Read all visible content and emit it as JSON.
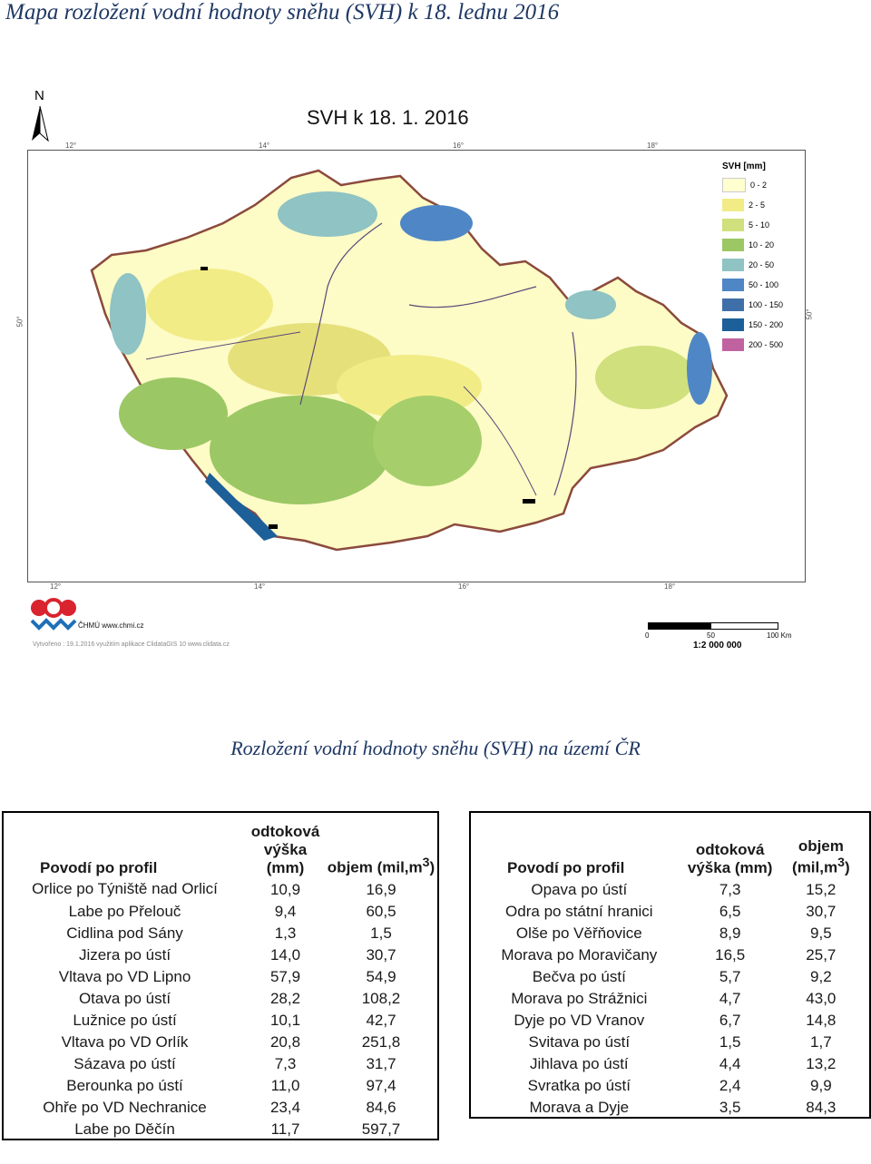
{
  "document_title": "Mapa rozložení vodní hodnoty sněhu (SVH) k 18. lednu 2016",
  "map": {
    "title": "SVH k 18. 1. 2016",
    "north_label": "N",
    "lon_ticks": [
      "12°",
      "14°",
      "16°",
      "18°"
    ],
    "lat_tick": "50°",
    "legend_title": "SVH [mm]",
    "legend": [
      {
        "label": "0 - 2",
        "color": "#ffffd0"
      },
      {
        "label": "2 - 5",
        "color": "#f2ec87"
      },
      {
        "label": "5 - 10",
        "color": "#cfe07d"
      },
      {
        "label": "10 - 20",
        "color": "#9cc765"
      },
      {
        "label": "20 - 50",
        "color": "#8fc3c4"
      },
      {
        "label": "50 - 100",
        "color": "#4f86c6"
      },
      {
        "label": "100 - 150",
        "color": "#3f6fa8"
      },
      {
        "label": "150 - 200",
        "color": "#1d5f98"
      },
      {
        "label": "200 - 500",
        "color": "#c062a0"
      }
    ],
    "logo_text": "ČHMÚ www.chmi.cz",
    "credit": "Vytvořeno : 19.1.2016 využitím aplikace ClidataGIS 10 www.clidata.cz",
    "scale_labels": [
      "0",
      "50",
      "100 Km"
    ],
    "scale_ratio": "1:2 000 000"
  },
  "section_title": "Rozložení vodní hodnoty sněhu (SVH) na území ČR",
  "table": {
    "header": {
      "profile": "Povodí po profil",
      "runoff": "odtoková výška (mm)",
      "volume_pre": "objem (mil,m",
      "volume_sup": "3",
      "volume_post": ")"
    },
    "left_rows": [
      [
        "Orlice po Týniště nad Orlicí",
        "10,9",
        "16,9"
      ],
      [
        "Labe po Přelouč",
        "9,4",
        "60,5"
      ],
      [
        "Cidlina pod Sány",
        "1,3",
        "1,5"
      ],
      [
        "Jizera po ústí",
        "14,0",
        "30,7"
      ],
      [
        "Vltava po VD Lipno",
        "57,9",
        "54,9"
      ],
      [
        "Otava po ústí",
        "28,2",
        "108,2"
      ],
      [
        "Lužnice po ústí",
        "10,1",
        "42,7"
      ],
      [
        "Vltava po VD Orlík",
        "20,8",
        "251,8"
      ],
      [
        "Sázava po ústí",
        "7,3",
        "31,7"
      ],
      [
        "Berounka po ústí",
        "11,0",
        "97,4"
      ],
      [
        "Ohře po VD Nechranice",
        "23,4",
        "84,6"
      ],
      [
        "Labe po Děčín",
        "11,7",
        "597,7"
      ]
    ],
    "right_rows": [
      [
        "Opava po ústí",
        "7,3",
        "15,2"
      ],
      [
        "Odra po státní hranici",
        "6,5",
        "30,7"
      ],
      [
        "Olše po Věřňovice",
        "8,9",
        "9,5"
      ],
      [
        "Morava po Moravičany",
        "16,5",
        "25,7"
      ],
      [
        "Bečva po ústí",
        "5,7",
        "9,2"
      ],
      [
        "Morava po Strážnici",
        "4,7",
        "43,0"
      ],
      [
        "Dyje po VD Vranov",
        "6,7",
        "14,8"
      ],
      [
        "Svitava po ústí",
        "1,5",
        "1,7"
      ],
      [
        "Jihlava po ústí",
        "4,4",
        "13,2"
      ],
      [
        "Svratka po ústí",
        "2,4",
        "9,9"
      ],
      [
        "Morava a Dyje",
        "3,5",
        "84,3"
      ]
    ]
  }
}
